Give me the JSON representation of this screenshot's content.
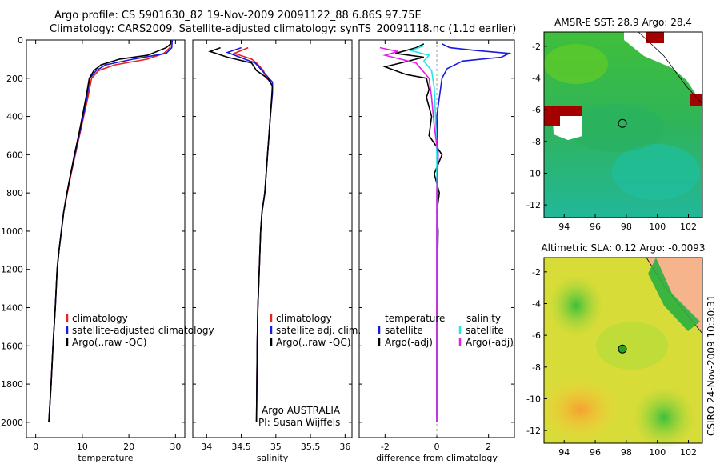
{
  "figure": {
    "title_line1": "Argo profile: CS 5901630_82 19-Nov-2009 20091122_88 6.86S 97.75E",
    "title_line2": "Climatology: CARS2009. Satellite-adjusted climatology: synTS_20091118.nc (1.1d earlier)",
    "side_stamp": "CSIRO 24-Nov-2009 10:30:31",
    "colors": {
      "red": "#e8211c",
      "blue": "#1a1adc",
      "black": "#000000",
      "cyan": "#22e6e6",
      "magenta": "#e61ee6"
    }
  },
  "chart_data": [
    {
      "type": "line",
      "id": "temperature",
      "xlabel": "temperature",
      "ylabel": "",
      "xlim": [
        -2,
        32
      ],
      "ylim": [
        2080,
        0
      ],
      "y_reversed": true,
      "xticks": [
        0,
        10,
        20,
        30
      ],
      "yticks": [
        0,
        200,
        400,
        600,
        800,
        1000,
        1200,
        1400,
        1600,
        1800,
        2000
      ],
      "legend": {
        "placement": "bottom-right",
        "entries": [
          "climatology",
          "satellite-adjusted climatology",
          "Argo(..raw -QC)"
        ]
      },
      "series": [
        {
          "name": "climatology",
          "color": "red",
          "points": [
            [
              29,
              0
            ],
            [
              28.8,
              40
            ],
            [
              27.5,
              70
            ],
            [
              24,
              100
            ],
            [
              17,
              130
            ],
            [
              13.5,
              160
            ],
            [
              12,
              200
            ],
            [
              11.2,
              300
            ],
            [
              10.3,
              400
            ],
            [
              9.4,
              500
            ],
            [
              8.5,
              600
            ],
            [
              7.6,
              700
            ],
            [
              6.8,
              800
            ],
            [
              6,
              900
            ],
            [
              5.5,
              1000
            ],
            [
              5,
              1100
            ],
            [
              4.6,
              1200
            ],
            [
              4.2,
              1400
            ],
            [
              3.7,
              1600
            ],
            [
              3.3,
              1800
            ],
            [
              2.8,
              2000
            ]
          ]
        },
        {
          "name": "satellite-adjusted climatology",
          "color": "blue",
          "points": [
            [
              29.3,
              0
            ],
            [
              29.2,
              40
            ],
            [
              28,
              70
            ],
            [
              21,
              100
            ],
            [
              15,
              130
            ],
            [
              13,
              160
            ],
            [
              11.6,
              200
            ],
            [
              11,
              300
            ],
            [
              10.2,
              400
            ],
            [
              9.3,
              500
            ],
            [
              8.4,
              600
            ],
            [
              7.5,
              700
            ],
            [
              6.7,
              800
            ],
            [
              6,
              900
            ],
            [
              5.5,
              1000
            ],
            [
              5,
              1100
            ],
            [
              4.6,
              1200
            ],
            [
              4.2,
              1400
            ],
            [
              3.7,
              1600
            ],
            [
              3.3,
              1800
            ],
            [
              2.8,
              2000
            ]
          ]
        },
        {
          "name": "Argo(..raw -QC)",
          "color": "black",
          "points": [
            [
              29,
              0
            ],
            [
              29,
              20
            ],
            [
              28,
              40
            ],
            [
              24,
              80
            ],
            [
              18,
              100
            ],
            [
              14,
              130
            ],
            [
              12.5,
              160
            ],
            [
              11.5,
              200
            ],
            [
              10.8,
              300
            ],
            [
              10,
              400
            ],
            [
              9.2,
              500
            ],
            [
              8.3,
              600
            ],
            [
              7.5,
              700
            ],
            [
              6.7,
              800
            ],
            [
              6,
              900
            ],
            [
              5.5,
              1000
            ],
            [
              5,
              1100
            ],
            [
              4.6,
              1200
            ],
            [
              4.2,
              1400
            ],
            [
              3.7,
              1600
            ],
            [
              3.3,
              1800
            ],
            [
              2.8,
              2000
            ]
          ]
        }
      ]
    },
    {
      "type": "line",
      "id": "salinity",
      "xlabel": "salinity",
      "ylabel": "",
      "xlim": [
        33.8,
        36.1
      ],
      "ylim": [
        2080,
        0
      ],
      "y_reversed": true,
      "xticks": [
        34,
        34.5,
        35,
        35.5,
        36
      ],
      "legend": {
        "placement": "bottom-right",
        "entries": [
          "climatology",
          "satellite adj. clim.",
          "Argo(..raw -QC)"
        ]
      },
      "annotation": {
        "line1": "Argo AUSTRALIA",
        "line2": "PI: Susan Wijffels"
      },
      "series": [
        {
          "name": "climatology",
          "color": "red",
          "points": [
            [
              34.6,
              40
            ],
            [
              34.4,
              70
            ],
            [
              34.65,
              100
            ],
            [
              34.72,
              120
            ],
            [
              34.82,
              160
            ],
            [
              34.86,
              200
            ],
            [
              34.95,
              220
            ],
            [
              34.95,
              280
            ],
            [
              34.92,
              400
            ],
            [
              34.9,
              500
            ],
            [
              34.88,
              600
            ],
            [
              34.86,
              700
            ],
            [
              34.84,
              800
            ],
            [
              34.8,
              900
            ],
            [
              34.78,
              1000
            ],
            [
              34.76,
              1200
            ],
            [
              34.74,
              1400
            ],
            [
              34.73,
              1600
            ],
            [
              34.72,
              2000
            ]
          ]
        },
        {
          "name": "satellite adj. clim.",
          "color": "blue",
          "points": [
            [
              34.5,
              40
            ],
            [
              34.3,
              65
            ],
            [
              34.55,
              100
            ],
            [
              34.7,
              120
            ],
            [
              34.8,
              160
            ],
            [
              34.9,
              200
            ],
            [
              34.95,
              220
            ],
            [
              34.95,
              280
            ],
            [
              34.92,
              400
            ],
            [
              34.9,
              500
            ],
            [
              34.88,
              600
            ],
            [
              34.86,
              700
            ],
            [
              34.84,
              800
            ],
            [
              34.8,
              900
            ],
            [
              34.78,
              1000
            ],
            [
              34.76,
              1200
            ],
            [
              34.74,
              1400
            ],
            [
              34.73,
              1600
            ],
            [
              34.72,
              2000
            ]
          ]
        },
        {
          "name": "Argo(..raw -QC)",
          "color": "black",
          "points": [
            [
              34.2,
              40
            ],
            [
              34.05,
              60
            ],
            [
              34.3,
              90
            ],
            [
              34.65,
              120
            ],
            [
              34.72,
              160
            ],
            [
              34.88,
              200
            ],
            [
              34.95,
              240
            ],
            [
              34.94,
              300
            ],
            [
              34.92,
              400
            ],
            [
              34.9,
              500
            ],
            [
              34.88,
              600
            ],
            [
              34.86,
              700
            ],
            [
              34.84,
              800
            ],
            [
              34.8,
              900
            ],
            [
              34.78,
              1000
            ],
            [
              34.76,
              1200
            ],
            [
              34.74,
              1400
            ],
            [
              34.73,
              1600
            ],
            [
              34.72,
              2000
            ]
          ]
        }
      ]
    },
    {
      "type": "line",
      "id": "difference",
      "xlabel": "difference from climatology",
      "ylabel": "",
      "xlim": [
        -3,
        3
      ],
      "ylim": [
        2080,
        0
      ],
      "y_reversed": true,
      "xticks": [
        -2,
        0,
        2
      ],
      "legend": {
        "placement": "bottom-center",
        "entries": [
          "temperature",
          "satellite",
          "Argo(-adj)",
          "salinity",
          "satellite",
          "Argo(-adj)"
        ]
      },
      "series": [
        {
          "name": "satellite",
          "color": "blue",
          "points": [
            [
              0.2,
              20
            ],
            [
              0.5,
              40
            ],
            [
              1.5,
              55
            ],
            [
              2.8,
              70
            ],
            [
              2.5,
              90
            ],
            [
              1,
              110
            ],
            [
              0.4,
              150
            ],
            [
              0.2,
              200
            ],
            [
              0.1,
              300
            ],
            [
              0,
              400
            ],
            [
              0.05,
              600
            ],
            [
              0.02,
              800
            ],
            [
              0,
              1000
            ],
            [
              0,
              1400
            ],
            [
              0,
              2000
            ]
          ]
        },
        {
          "name": "Argo(-adj)",
          "color": "black",
          "points": [
            [
              -0.5,
              20
            ],
            [
              -0.8,
              40
            ],
            [
              -1.6,
              70
            ],
            [
              -0.5,
              90
            ],
            [
              -2,
              140
            ],
            [
              -1.2,
              180
            ],
            [
              -0.4,
              200
            ],
            [
              -0.3,
              260
            ],
            [
              -0.4,
              300
            ],
            [
              -0.2,
              400
            ],
            [
              -0.3,
              500
            ],
            [
              0.2,
              600
            ],
            [
              -0.1,
              700
            ],
            [
              0.1,
              800
            ],
            [
              0,
              900
            ],
            [
              0.05,
              1000
            ],
            [
              0,
              1400
            ],
            [
              0,
              2000
            ]
          ]
        },
        {
          "name": "satellite",
          "color": "cyan",
          "points": [
            [
              -0.5,
              30
            ],
            [
              -1,
              55
            ],
            [
              -0.3,
              80
            ],
            [
              -0.5,
              110
            ],
            [
              -0.2,
              160
            ],
            [
              -0.1,
              250
            ],
            [
              -0.05,
              400
            ],
            [
              0,
              600
            ],
            [
              0,
              1000
            ],
            [
              0,
              2000
            ]
          ]
        },
        {
          "name": "Argo(-adj)",
          "color": "magenta",
          "points": [
            [
              -2.2,
              40
            ],
            [
              -1.5,
              60
            ],
            [
              -2,
              80
            ],
            [
              -0.8,
              120
            ],
            [
              -0.3,
              200
            ],
            [
              -0.2,
              300
            ],
            [
              -0.1,
              450
            ],
            [
              0.05,
              600
            ],
            [
              0,
              800
            ],
            [
              0,
              2000
            ]
          ]
        }
      ]
    },
    {
      "type": "heatmap",
      "id": "sst_map",
      "title": "AMSR-E SST: 28.9  Argo: 28.4",
      "xlim": [
        92.7,
        102.9
      ],
      "ylim": [
        -12.8,
        -1.1
      ],
      "xticks": [
        94,
        96,
        98,
        100,
        102
      ],
      "yticks": [
        -2,
        -4,
        -6,
        -8,
        -10,
        -12
      ],
      "marker": {
        "lon": 97.75,
        "lat": -6.86
      }
    },
    {
      "type": "heatmap",
      "id": "sla_map",
      "title": "Altimetric SLA: 0.12  Argo: -0.0093",
      "xlim": [
        92.7,
        102.9
      ],
      "ylim": [
        -12.8,
        -1.1
      ],
      "xticks": [
        94,
        96,
        98,
        100,
        102
      ],
      "yticks": [
        -2,
        -4,
        -6,
        -8,
        -10,
        -12
      ],
      "marker": {
        "lon": 97.75,
        "lat": -6.86
      }
    }
  ]
}
